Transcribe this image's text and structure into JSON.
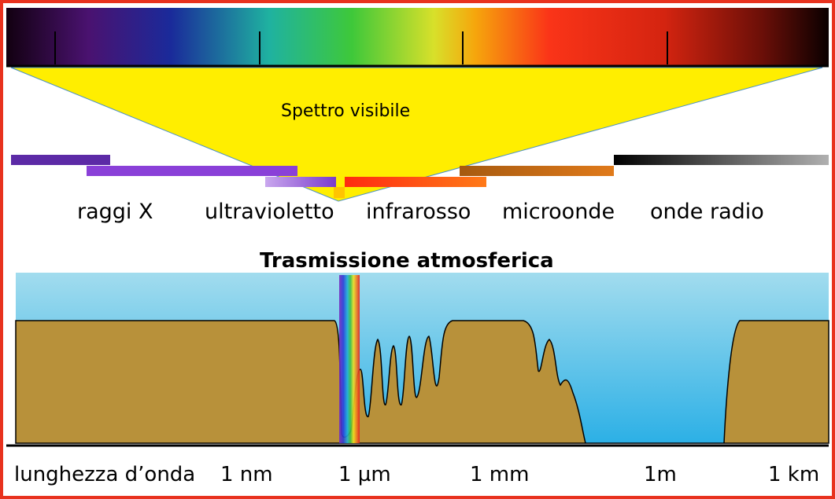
{
  "colors": {
    "frame": "#e8321e",
    "funnel": "#ffee00",
    "sky": "#7fd0ec",
    "ground": "#b8913a",
    "xray_band": "#5c2aa6",
    "uv_band": "#9b5fd8",
    "ir_band": "#ff4a12",
    "microwave_band": "#c8680c",
    "radio_band": "#000000"
  },
  "spectrum_label": "Spettro visibile",
  "bands": {
    "xray": "raggi X",
    "ultraviolet": "ultravioletto",
    "infrared": "infrarosso",
    "microwave": "microonde",
    "radio": "onde radio"
  },
  "transmission_title": "Trasmissione atmosferica",
  "axis": {
    "label": "lunghezza d’onda",
    "ticks": [
      "1 nm",
      "1 µm",
      "1 mm",
      "1m",
      "1 km"
    ]
  }
}
